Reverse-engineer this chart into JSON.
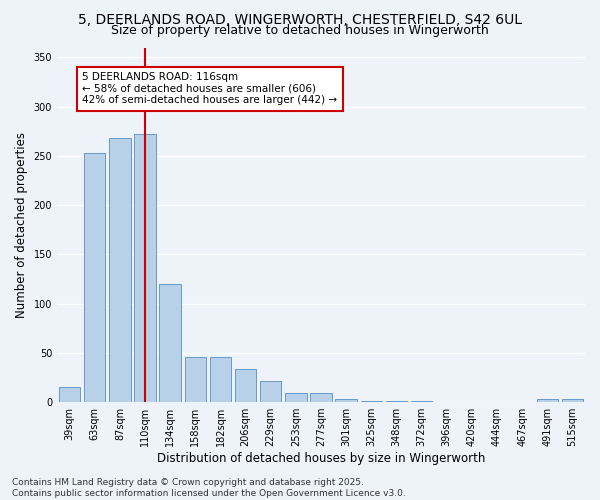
{
  "title_line1": "5, DEERLANDS ROAD, WINGERWORTH, CHESTERFIELD, S42 6UL",
  "title_line2": "Size of property relative to detached houses in Wingerworth",
  "xlabel": "Distribution of detached houses by size in Wingerworth",
  "ylabel": "Number of detached properties",
  "categories": [
    "39sqm",
    "63sqm",
    "87sqm",
    "110sqm",
    "134sqm",
    "158sqm",
    "182sqm",
    "206sqm",
    "229sqm",
    "253sqm",
    "277sqm",
    "301sqm",
    "325sqm",
    "348sqm",
    "372sqm",
    "396sqm",
    "420sqm",
    "444sqm",
    "467sqm",
    "491sqm",
    "515sqm"
  ],
  "values": [
    15,
    253,
    268,
    272,
    120,
    46,
    46,
    34,
    21,
    9,
    9,
    3,
    1,
    1,
    1,
    0,
    0,
    0,
    0,
    3,
    3
  ],
  "bar_color": "#b8d0e8",
  "bar_edge_color": "#6699cc",
  "vline_color": "#cc0000",
  "vline_x_index": 3,
  "annotation_line1": "5 DEERLANDS ROAD: 116sqm",
  "annotation_line2": "← 58% of detached houses are smaller (606)",
  "annotation_line3": "42% of semi-detached houses are larger (442) →",
  "annotation_box_color": "#ffffff",
  "annotation_box_edge_color": "#cc0000",
  "ylim": [
    0,
    360
  ],
  "yticks": [
    0,
    50,
    100,
    150,
    200,
    250,
    300,
    350
  ],
  "background_color": "#eef2f9",
  "footer_text": "Contains HM Land Registry data © Crown copyright and database right 2025.\nContains public sector information licensed under the Open Government Licence v3.0.",
  "grid_color": "#ffffff",
  "title_fontsize": 10,
  "subtitle_fontsize": 9,
  "axis_label_fontsize": 8.5,
  "tick_fontsize": 7,
  "annotation_fontsize": 7.5,
  "footer_fontsize": 6.5
}
